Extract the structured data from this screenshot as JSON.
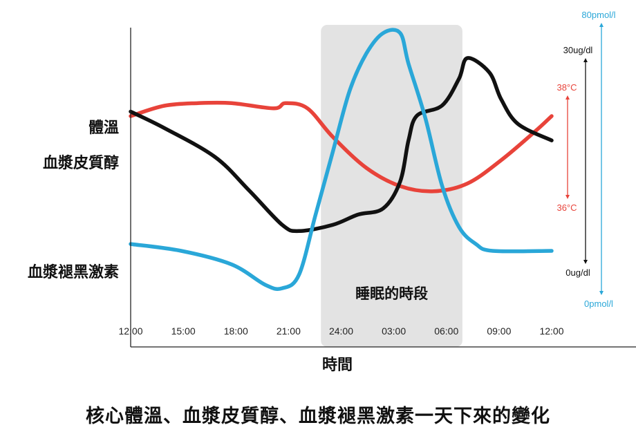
{
  "chart_data": {
    "type": "line",
    "caption": "核心體溫、血漿皮質醇、血漿褪黑激素一天下來的變化",
    "xlabel": "時間",
    "x_ticks": [
      "12:00",
      "15:00",
      "18:00",
      "21:00",
      "24:00",
      "03:00",
      "06:00",
      "09:00",
      "12:00"
    ],
    "x_range_hours": [
      12,
      37
    ],
    "shaded_region": {
      "label": "睡眠的時段",
      "start_hour": 23.3,
      "end_hour": 31.7
    },
    "grid": false,
    "series": [
      {
        "name": "體溫",
        "color": "#e8433a",
        "axis": "temperature",
        "points": [
          [
            12,
            37.6
          ],
          [
            14,
            37.8
          ],
          [
            16,
            37.85
          ],
          [
            18,
            37.85
          ],
          [
            20.5,
            37.75
          ],
          [
            21.2,
            37.85
          ],
          [
            22.5,
            37.75
          ],
          [
            24,
            37.2
          ],
          [
            26,
            36.6
          ],
          [
            28,
            36.25
          ],
          [
            30,
            36.15
          ],
          [
            32,
            36.3
          ],
          [
            34,
            36.75
          ],
          [
            36,
            37.3
          ],
          [
            37,
            37.6
          ]
        ]
      },
      {
        "name": "血漿皮質醇",
        "color": "#111111",
        "axis": "cortisol",
        "points": [
          [
            12,
            22.2
          ],
          [
            14,
            19.8
          ],
          [
            17,
            15.6
          ],
          [
            19,
            10.8
          ],
          [
            21,
            5.7
          ],
          [
            22,
            4.8
          ],
          [
            24,
            5.7
          ],
          [
            25.5,
            7.2
          ],
          [
            27,
            8.1
          ],
          [
            28,
            12
          ],
          [
            28.5,
            18
          ],
          [
            29,
            21.6
          ],
          [
            30.5,
            23.1
          ],
          [
            31.5,
            27
          ],
          [
            32,
            30
          ],
          [
            33.3,
            27.9
          ],
          [
            34,
            24
          ],
          [
            35,
            20.4
          ],
          [
            37,
            18
          ]
        ]
      },
      {
        "name": "血漿褪黑激素",
        "color": "#2aa7d8",
        "axis": "melatonin",
        "points": [
          [
            12,
            15
          ],
          [
            15,
            13
          ],
          [
            18,
            9
          ],
          [
            20,
            3
          ],
          [
            21,
            2
          ],
          [
            22,
            6
          ],
          [
            23,
            24
          ],
          [
            24,
            42
          ],
          [
            25,
            60
          ],
          [
            26,
            71
          ],
          [
            27,
            77
          ],
          [
            28,
            77
          ],
          [
            28.5,
            68
          ],
          [
            29.5,
            52
          ],
          [
            30.5,
            32
          ],
          [
            31.5,
            20
          ],
          [
            32.5,
            15
          ],
          [
            33.5,
            13
          ],
          [
            37,
            13
          ]
        ]
      }
    ],
    "axes": [
      {
        "id": "temperature",
        "color": "#e8433a",
        "top_label": "38°C",
        "bottom_label": "36°C",
        "range": [
          36,
          38
        ]
      },
      {
        "id": "cortisol",
        "color": "#111111",
        "top_label": "30ug/dl",
        "bottom_label": "0ug/dl",
        "range": [
          0,
          30
        ]
      },
      {
        "id": "melatonin",
        "color": "#2aa7d8",
        "top_label": "80pmol/l",
        "bottom_label": "0pmol/l",
        "range": [
          0,
          80
        ]
      }
    ]
  }
}
